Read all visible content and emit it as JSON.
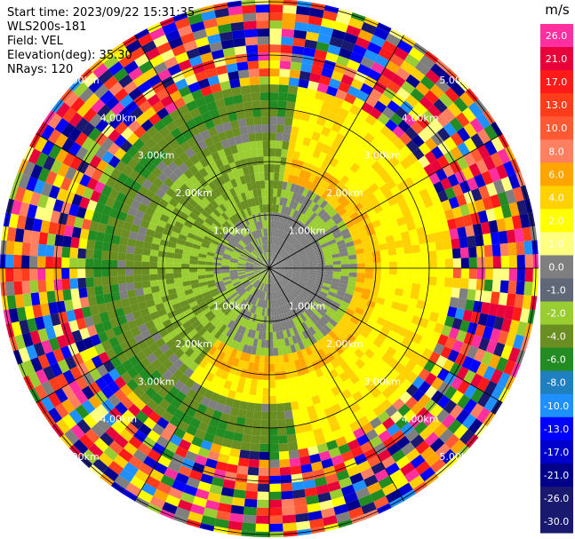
{
  "header": {
    "start_time": "Start time: 2023/09/22 15:31:35",
    "instrument": "WLS200s-181",
    "field": "Field: VEL",
    "elevation": "Elevation(deg): 35.30",
    "nrays": "NRays: 120"
  },
  "chart_data": {
    "type": "heatmap",
    "projection": "polar-ppi",
    "field": "VEL",
    "nrays": 120,
    "elevation_deg": 35.3,
    "ring_labels": [
      "1.00km",
      "2.00km",
      "3.00km",
      "4.00km",
      "5.00km"
    ],
    "ring_ranges_km": [
      1,
      2,
      3,
      4,
      5
    ],
    "radial_lines_deg": [
      0,
      30,
      60,
      90,
      120,
      150,
      180,
      210,
      240,
      270,
      300,
      330
    ],
    "colorbar": {
      "unit": "m/s",
      "tick_labels": [
        "26.0",
        "21.0",
        "17.0",
        "13.0",
        "10.0",
        "8.0",
        "6.0",
        "4.0",
        "2.0",
        "1.0",
        "0.0",
        "-1.0",
        "-2.0",
        "-4.0",
        "-6.0",
        "-8.0",
        "-10.0",
        "-13.0",
        "-17.0",
        "-21.0",
        "-26.0",
        "-30.0"
      ],
      "colors": [
        "#ff2f9f",
        "#e8003a",
        "#ff1a1a",
        "#ff3d1a",
        "#ff5a33",
        "#ff8060",
        "#ffa500",
        "#ffd100",
        "#ffff00",
        "#ffff80",
        "#7f7f7f",
        "#606878",
        "#9acd32",
        "#6b8e23",
        "#228b22",
        "#1f7fbf",
        "#1e90ff",
        "#0000ff",
        "#0000cd",
        "#00008b",
        "#191970",
        "#191970"
      ]
    }
  }
}
